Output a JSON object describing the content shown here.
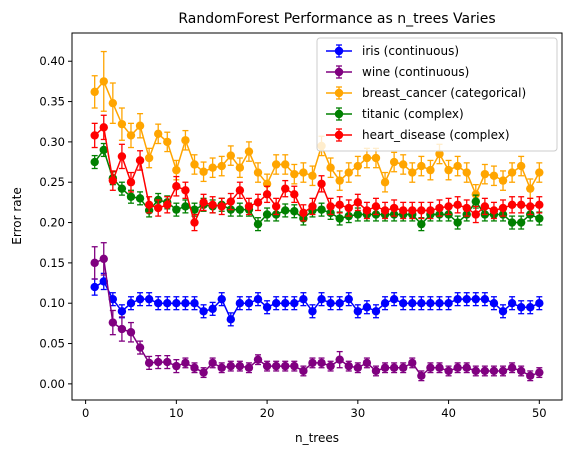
{
  "chart_data": {
    "type": "line",
    "title": "RandomForest Performance as n_trees Varies",
    "xlabel": "n_trees",
    "ylabel": "Error rate",
    "xlim": [
      -1.5,
      52.5
    ],
    "ylim": [
      -0.02,
      0.435
    ],
    "xticks": [
      0,
      10,
      20,
      30,
      40,
      50
    ],
    "xtick_labels": [
      "0",
      "10",
      "20",
      "30",
      "40",
      "50"
    ],
    "yticks": [
      0.0,
      0.05,
      0.1,
      0.15,
      0.2,
      0.25,
      0.3,
      0.35,
      0.4
    ],
    "ytick_labels": [
      "0.00",
      "0.05",
      "0.10",
      "0.15",
      "0.20",
      "0.25",
      "0.30",
      "0.35",
      "0.40"
    ],
    "grid": false,
    "legend_position": "top-right",
    "x": [
      1,
      2,
      3,
      4,
      5,
      6,
      7,
      8,
      9,
      10,
      11,
      12,
      13,
      14,
      15,
      16,
      17,
      18,
      19,
      20,
      21,
      22,
      23,
      24,
      25,
      26,
      27,
      28,
      29,
      30,
      31,
      32,
      33,
      34,
      35,
      36,
      37,
      38,
      39,
      40,
      41,
      42,
      43,
      44,
      45,
      46,
      47,
      48,
      49,
      50
    ],
    "series": [
      {
        "name": "iris (continuous)",
        "color": "#0000ff",
        "values": [
          0.12,
          0.127,
          0.105,
          0.09,
          0.1,
          0.105,
          0.105,
          0.1,
          0.1,
          0.1,
          0.1,
          0.1,
          0.09,
          0.093,
          0.105,
          0.08,
          0.1,
          0.1,
          0.105,
          0.095,
          0.1,
          0.1,
          0.1,
          0.105,
          0.09,
          0.105,
          0.1,
          0.1,
          0.105,
          0.09,
          0.095,
          0.09,
          0.1,
          0.105,
          0.1,
          0.1,
          0.1,
          0.1,
          0.1,
          0.1,
          0.105,
          0.105,
          0.105,
          0.105,
          0.1,
          0.09,
          0.1,
          0.095,
          0.095,
          0.1
        ],
        "errors": [
          0.01,
          0.01,
          0.008,
          0.008,
          0.008,
          0.008,
          0.008,
          0.008,
          0.008,
          0.008,
          0.008,
          0.008,
          0.008,
          0.008,
          0.008,
          0.008,
          0.008,
          0.008,
          0.008,
          0.008,
          0.008,
          0.008,
          0.008,
          0.008,
          0.008,
          0.008,
          0.008,
          0.008,
          0.008,
          0.008,
          0.008,
          0.008,
          0.008,
          0.008,
          0.008,
          0.008,
          0.008,
          0.008,
          0.008,
          0.008,
          0.008,
          0.008,
          0.008,
          0.008,
          0.008,
          0.008,
          0.008,
          0.008,
          0.008,
          0.008
        ]
      },
      {
        "name": "wine (continuous)",
        "color": "#800080",
        "values": [
          0.15,
          0.155,
          0.076,
          0.068,
          0.064,
          0.045,
          0.026,
          0.027,
          0.027,
          0.022,
          0.026,
          0.02,
          0.014,
          0.026,
          0.02,
          0.022,
          0.022,
          0.02,
          0.03,
          0.022,
          0.022,
          0.022,
          0.022,
          0.016,
          0.026,
          0.026,
          0.022,
          0.03,
          0.022,
          0.02,
          0.026,
          0.016,
          0.02,
          0.02,
          0.02,
          0.026,
          0.01,
          0.02,
          0.02,
          0.016,
          0.02,
          0.02,
          0.016,
          0.016,
          0.016,
          0.016,
          0.02,
          0.016,
          0.01,
          0.014
        ],
        "errors": [
          0.02,
          0.02,
          0.015,
          0.015,
          0.012,
          0.008,
          0.008,
          0.008,
          0.008,
          0.008,
          0.006,
          0.006,
          0.006,
          0.006,
          0.006,
          0.006,
          0.006,
          0.006,
          0.006,
          0.006,
          0.006,
          0.006,
          0.006,
          0.006,
          0.006,
          0.006,
          0.006,
          0.01,
          0.006,
          0.006,
          0.006,
          0.006,
          0.006,
          0.006,
          0.006,
          0.006,
          0.006,
          0.006,
          0.006,
          0.006,
          0.006,
          0.006,
          0.006,
          0.006,
          0.006,
          0.006,
          0.006,
          0.006,
          0.006,
          0.006
        ]
      },
      {
        "name": "breast_cancer (categorical)",
        "color": "#ffa500",
        "values": [
          0.362,
          0.375,
          0.348,
          0.322,
          0.308,
          0.32,
          0.28,
          0.31,
          0.3,
          0.265,
          0.302,
          0.272,
          0.263,
          0.268,
          0.27,
          0.283,
          0.268,
          0.288,
          0.262,
          0.248,
          0.272,
          0.272,
          0.26,
          0.262,
          0.258,
          0.295,
          0.268,
          0.252,
          0.262,
          0.27,
          0.28,
          0.28,
          0.25,
          0.275,
          0.272,
          0.262,
          0.27,
          0.265,
          0.285,
          0.265,
          0.27,
          0.262,
          0.235,
          0.26,
          0.258,
          0.252,
          0.262,
          0.27,
          0.242,
          0.262
        ],
        "errors": [
          0.02,
          0.037,
          0.025,
          0.02,
          0.015,
          0.015,
          0.012,
          0.012,
          0.012,
          0.012,
          0.012,
          0.012,
          0.012,
          0.012,
          0.012,
          0.012,
          0.012,
          0.012,
          0.012,
          0.012,
          0.012,
          0.012,
          0.012,
          0.012,
          0.012,
          0.012,
          0.012,
          0.012,
          0.012,
          0.012,
          0.012,
          0.012,
          0.012,
          0.012,
          0.012,
          0.012,
          0.012,
          0.012,
          0.012,
          0.012,
          0.012,
          0.012,
          0.012,
          0.012,
          0.012,
          0.012,
          0.012,
          0.012,
          0.012,
          0.012
        ]
      },
      {
        "name": "titanic (complex)",
        "color": "#008000",
        "values": [
          0.275,
          0.29,
          0.255,
          0.242,
          0.232,
          0.23,
          0.215,
          0.228,
          0.225,
          0.216,
          0.22,
          0.216,
          0.222,
          0.22,
          0.222,
          0.216,
          0.216,
          0.216,
          0.198,
          0.21,
          0.21,
          0.215,
          0.214,
          0.205,
          0.215,
          0.216,
          0.212,
          0.205,
          0.208,
          0.21,
          0.21,
          0.21,
          0.21,
          0.21,
          0.21,
          0.21,
          0.198,
          0.21,
          0.21,
          0.21,
          0.2,
          0.21,
          0.226,
          0.21,
          0.21,
          0.21,
          0.2,
          0.2,
          0.21,
          0.205
        ],
        "errors": [
          0.008,
          0.008,
          0.008,
          0.008,
          0.008,
          0.008,
          0.008,
          0.008,
          0.008,
          0.008,
          0.008,
          0.008,
          0.008,
          0.008,
          0.008,
          0.008,
          0.008,
          0.008,
          0.008,
          0.008,
          0.008,
          0.008,
          0.008,
          0.008,
          0.008,
          0.008,
          0.008,
          0.008,
          0.008,
          0.008,
          0.008,
          0.008,
          0.008,
          0.008,
          0.008,
          0.008,
          0.008,
          0.008,
          0.008,
          0.008,
          0.008,
          0.008,
          0.008,
          0.008,
          0.008,
          0.008,
          0.008,
          0.008,
          0.008,
          0.008
        ]
      },
      {
        "name": "heart_disease (complex)",
        "color": "#ff0000",
        "values": [
          0.308,
          0.318,
          0.252,
          0.282,
          0.25,
          0.277,
          0.222,
          0.218,
          0.222,
          0.245,
          0.24,
          0.2,
          0.225,
          0.222,
          0.22,
          0.226,
          0.24,
          0.22,
          0.225,
          0.235,
          0.22,
          0.242,
          0.235,
          0.212,
          0.22,
          0.248,
          0.22,
          0.222,
          0.218,
          0.225,
          0.215,
          0.22,
          0.215,
          0.218,
          0.215,
          0.215,
          0.215,
          0.215,
          0.218,
          0.22,
          0.222,
          0.218,
          0.21,
          0.22,
          0.215,
          0.218,
          0.222,
          0.222,
          0.22,
          0.222
        ],
        "errors": [
          0.015,
          0.015,
          0.012,
          0.015,
          0.012,
          0.012,
          0.01,
          0.01,
          0.01,
          0.012,
          0.01,
          0.01,
          0.01,
          0.01,
          0.01,
          0.01,
          0.01,
          0.01,
          0.01,
          0.01,
          0.01,
          0.01,
          0.01,
          0.01,
          0.01,
          0.01,
          0.01,
          0.01,
          0.01,
          0.01,
          0.01,
          0.01,
          0.01,
          0.01,
          0.01,
          0.01,
          0.01,
          0.01,
          0.01,
          0.01,
          0.01,
          0.01,
          0.01,
          0.01,
          0.01,
          0.01,
          0.01,
          0.01,
          0.01,
          0.01
        ]
      }
    ]
  }
}
